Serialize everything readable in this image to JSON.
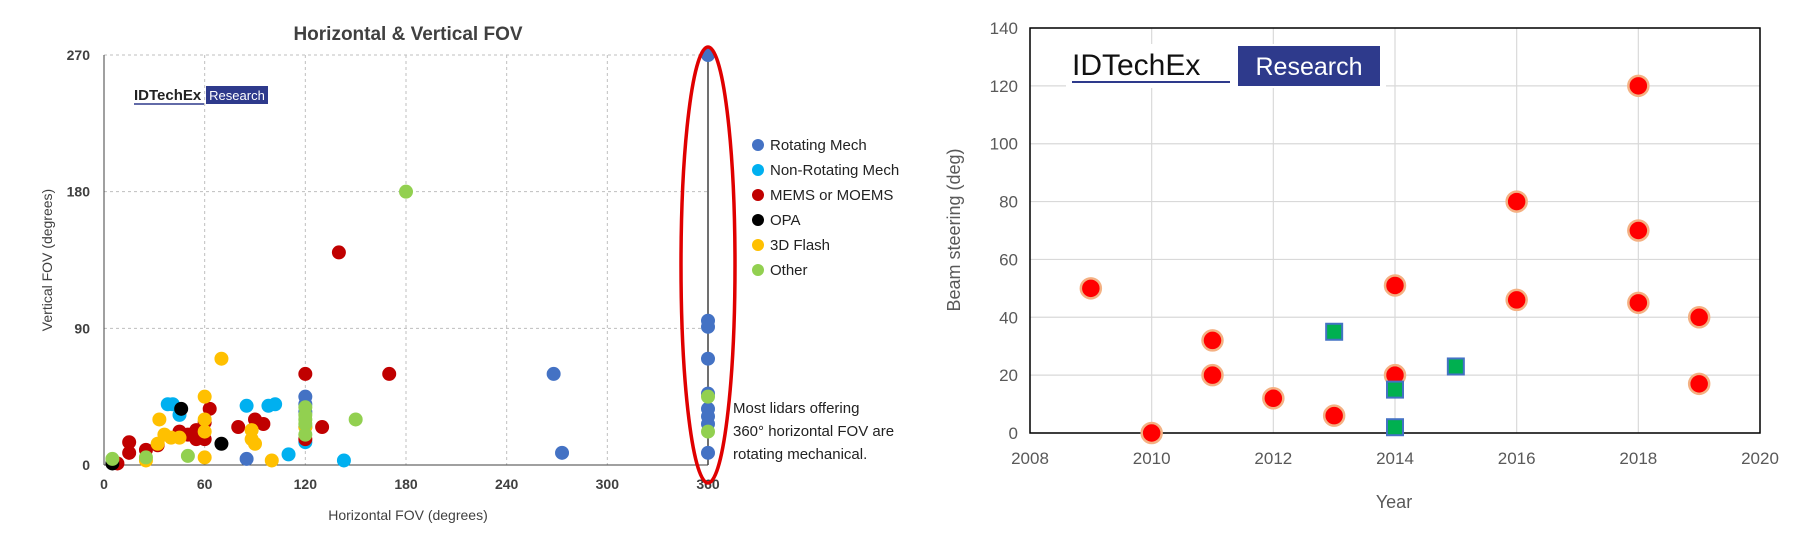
{
  "chart_data": [
    {
      "type": "scatter",
      "title": "Horizontal & Vertical FOV",
      "xlabel": "Horizontal FOV (degrees)",
      "ylabel": "Vertical FOV (degrees)",
      "xlim": [
        0,
        360
      ],
      "ylim": [
        0,
        270
      ],
      "xticks": [
        0,
        60,
        120,
        180,
        240,
        300,
        360
      ],
      "yticks": [
        0,
        90,
        180,
        270
      ],
      "grid": "dashed",
      "legend_position": "right",
      "logo": {
        "brand": "IDTechEx",
        "tag": "Research"
      },
      "annotation": [
        "Most lidars offering",
        "360° horizontal FOV are",
        "rotating mechanical."
      ],
      "highlight": "ellipse around 360° column",
      "series": [
        {
          "name": "Rotating Mech",
          "color": "#4472C4",
          "points": [
            [
              360,
              270
            ],
            [
              360,
              95
            ],
            [
              360,
              91
            ],
            [
              360,
              70
            ],
            [
              360,
              47
            ],
            [
              360,
              37
            ],
            [
              360,
              32
            ],
            [
              360,
              27
            ],
            [
              360,
              8
            ],
            [
              268,
              60
            ],
            [
              273,
              8
            ],
            [
              120,
              45
            ],
            [
              120,
              40
            ],
            [
              120,
              35
            ],
            [
              85,
              4
            ]
          ]
        },
        {
          "name": "Non-Rotating Mech",
          "color": "#00B0F0",
          "points": [
            [
              38,
              40
            ],
            [
              41,
              40
            ],
            [
              85,
              39
            ],
            [
              98,
              39
            ],
            [
              102,
              40
            ],
            [
              110,
              7
            ],
            [
              120,
              15
            ],
            [
              120,
              25
            ],
            [
              143,
              3
            ],
            [
              45,
              33
            ]
          ]
        },
        {
          "name": "MEMS or MOEMS",
          "color": "#C00000",
          "points": [
            [
              140,
              140
            ],
            [
              170,
              60
            ],
            [
              120,
              60
            ],
            [
              130,
              25
            ],
            [
              80,
              25
            ],
            [
              90,
              30
            ],
            [
              95,
              27
            ],
            [
              60,
              28
            ],
            [
              55,
              17
            ],
            [
              50,
              20
            ],
            [
              55,
              23
            ],
            [
              63,
              37
            ],
            [
              45,
              22
            ],
            [
              15,
              15
            ],
            [
              25,
              10
            ],
            [
              32,
              13
            ],
            [
              60,
              17
            ],
            [
              120,
              17
            ],
            [
              8,
              1
            ],
            [
              15,
              8
            ]
          ]
        },
        {
          "name": "OPA",
          "color": "#000000",
          "points": [
            [
              46,
              37
            ],
            [
              5,
              1
            ],
            [
              70,
              14
            ]
          ]
        },
        {
          "name": "3D Flash",
          "color": "#FFC000",
          "points": [
            [
              70,
              70
            ],
            [
              60,
              45
            ],
            [
              33,
              30
            ],
            [
              60,
              30
            ],
            [
              36,
              20
            ],
            [
              32,
              14
            ],
            [
              40,
              18
            ],
            [
              45,
              18
            ],
            [
              60,
              22
            ],
            [
              88,
              23
            ],
            [
              88,
              17
            ],
            [
              90,
              14
            ],
            [
              60,
              5
            ],
            [
              100,
              3
            ],
            [
              120,
              25
            ],
            [
              25,
              3
            ]
          ]
        },
        {
          "name": "Other",
          "color": "#92D050",
          "points": [
            [
              180,
              180
            ],
            [
              120,
              38
            ],
            [
              120,
              33
            ],
            [
              120,
              30
            ],
            [
              120,
              27
            ],
            [
              150,
              30
            ],
            [
              360,
              45
            ],
            [
              360,
              22
            ],
            [
              25,
              5
            ],
            [
              50,
              6
            ],
            [
              5,
              4
            ],
            [
              120,
              20
            ]
          ]
        }
      ]
    },
    {
      "type": "scatter",
      "title": "",
      "xlabel": "Year",
      "ylabel": "Beam steering (deg)",
      "xlim": [
        2008,
        2020
      ],
      "ylim": [
        0,
        140
      ],
      "xticks": [
        2008,
        2010,
        2012,
        2014,
        2016,
        2018,
        2020
      ],
      "yticks": [
        0,
        20,
        40,
        60,
        80,
        100,
        120,
        140
      ],
      "grid": "solid",
      "logo": {
        "brand": "IDTechEx",
        "tag": "Research"
      },
      "series": [
        {
          "marker": "circle",
          "color": "#FF0000",
          "edge": "#F4B183",
          "points": [
            [
              2009,
              50
            ],
            [
              2010,
              0
            ],
            [
              2011,
              32
            ],
            [
              2011,
              20
            ],
            [
              2012,
              12
            ],
            [
              2013,
              6
            ],
            [
              2014,
              51
            ],
            [
              2014,
              20
            ],
            [
              2016,
              80
            ],
            [
              2016,
              46
            ],
            [
              2018,
              120
            ],
            [
              2018,
              70
            ],
            [
              2018,
              45
            ],
            [
              2019,
              40
            ],
            [
              2019,
              17
            ]
          ]
        },
        {
          "marker": "square",
          "color": "#00B050",
          "edge": "#4472C4",
          "points": [
            [
              2013,
              35
            ],
            [
              2014,
              15
            ],
            [
              2014,
              2
            ],
            [
              2015,
              23
            ]
          ]
        }
      ]
    }
  ]
}
